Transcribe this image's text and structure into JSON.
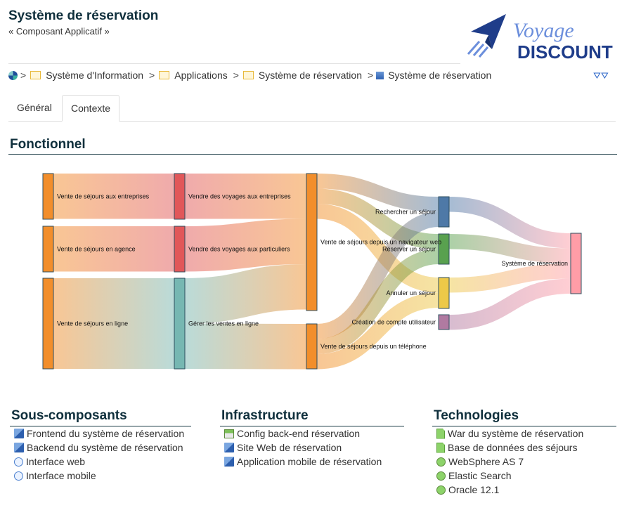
{
  "header": {
    "title": "Système de réservation",
    "subtitle": "« Composant Applicatif »",
    "logo_text_1": "Voyage",
    "logo_text_2": "DISCOUNT"
  },
  "breadcrumb": [
    {
      "label": "Système d'Information",
      "icon": "folder-icon"
    },
    {
      "label": "Applications",
      "icon": "folder-icon"
    },
    {
      "label": "Système de réservation",
      "icon": "folder-icon"
    },
    {
      "label": "Système de réservation",
      "icon": "component-icon"
    }
  ],
  "tabs": [
    {
      "label": "Général"
    },
    {
      "label": "Contexte",
      "active": true
    }
  ],
  "fonctionnel": {
    "title": "Fonctionnel"
  },
  "chart_data": {
    "type": "sankey",
    "nodes": [
      {
        "label": "Vente de séjours aux entreprises",
        "color": "#f28e2b"
      },
      {
        "label": "Vente de séjours en agence",
        "color": "#f28e2b"
      },
      {
        "label": "Vente de séjours en ligne",
        "color": "#f28e2b"
      },
      {
        "label": "Vendre des voyages aux entreprises",
        "color": "#e15759"
      },
      {
        "label": "Vendre des voyages aux particuliers",
        "color": "#e15759"
      },
      {
        "label": "Gérer les ventes en ligne",
        "color": "#76b7b2"
      },
      {
        "label": "Vente de séjours depuis un navigateur web",
        "color": "#f28e2b"
      },
      {
        "label": "Vente de séjours depuis un téléphone",
        "color": "#f28e2b"
      },
      {
        "label": "Rechercher un séjour",
        "color": "#4e79a7"
      },
      {
        "label": "Réserver un séjour",
        "color": "#59a14f"
      },
      {
        "label": "Annuler un séjour",
        "color": "#edc948"
      },
      {
        "label": "Création de compte utilisateur",
        "color": "#b07aa1"
      },
      {
        "label": "Système de réservation",
        "color": "#ff9da7"
      }
    ],
    "links": [
      {
        "source": 0,
        "target": 3,
        "value": 3
      },
      {
        "source": 1,
        "target": 4,
        "value": 3
      },
      {
        "source": 2,
        "target": 5,
        "value": 6
      },
      {
        "source": 3,
        "target": 6,
        "value": 3
      },
      {
        "source": 4,
        "target": 6,
        "value": 3
      },
      {
        "source": 5,
        "target": 6,
        "value": 3
      },
      {
        "source": 5,
        "target": 7,
        "value": 3
      },
      {
        "source": 6,
        "target": 8,
        "value": 1
      },
      {
        "source": 6,
        "target": 9,
        "value": 1
      },
      {
        "source": 6,
        "target": 10,
        "value": 1
      },
      {
        "source": 7,
        "target": 8,
        "value": 1
      },
      {
        "source": 7,
        "target": 9,
        "value": 1
      },
      {
        "source": 7,
        "target": 10,
        "value": 1
      },
      {
        "source": 8,
        "target": 12,
        "value": 1
      },
      {
        "source": 9,
        "target": 12,
        "value": 1
      },
      {
        "source": 10,
        "target": 12,
        "value": 1
      },
      {
        "source": 11,
        "target": 12,
        "value": 1
      }
    ]
  },
  "sous_composants": {
    "title": "Sous-composants",
    "items": [
      {
        "label": "Frontend du système de réservation",
        "icon": "component-icon"
      },
      {
        "label": "Backend du système de réservation",
        "icon": "component-icon"
      },
      {
        "label": "Interface web",
        "icon": "interface-icon"
      },
      {
        "label": "Interface mobile",
        "icon": "interface-icon"
      }
    ]
  },
  "infrastructure": {
    "title": "Infrastructure",
    "items": [
      {
        "label": "Config back-end réservation",
        "icon": "infrastructure-icon"
      },
      {
        "label": "Site Web de réservation",
        "icon": "component-icon"
      },
      {
        "label": "Application mobile de réservation",
        "icon": "component-icon"
      }
    ]
  },
  "technologies": {
    "title": "Technologies",
    "items": [
      {
        "label": "War du système de réservation",
        "icon": "file-icon"
      },
      {
        "label": "Base de données des séjours",
        "icon": "file-icon"
      },
      {
        "label": "WebSphere AS 7",
        "icon": "technology-icon"
      },
      {
        "label": "Elastic Search",
        "icon": "technology-icon"
      },
      {
        "label": "Oracle 12.1",
        "icon": "technology-icon"
      }
    ]
  }
}
